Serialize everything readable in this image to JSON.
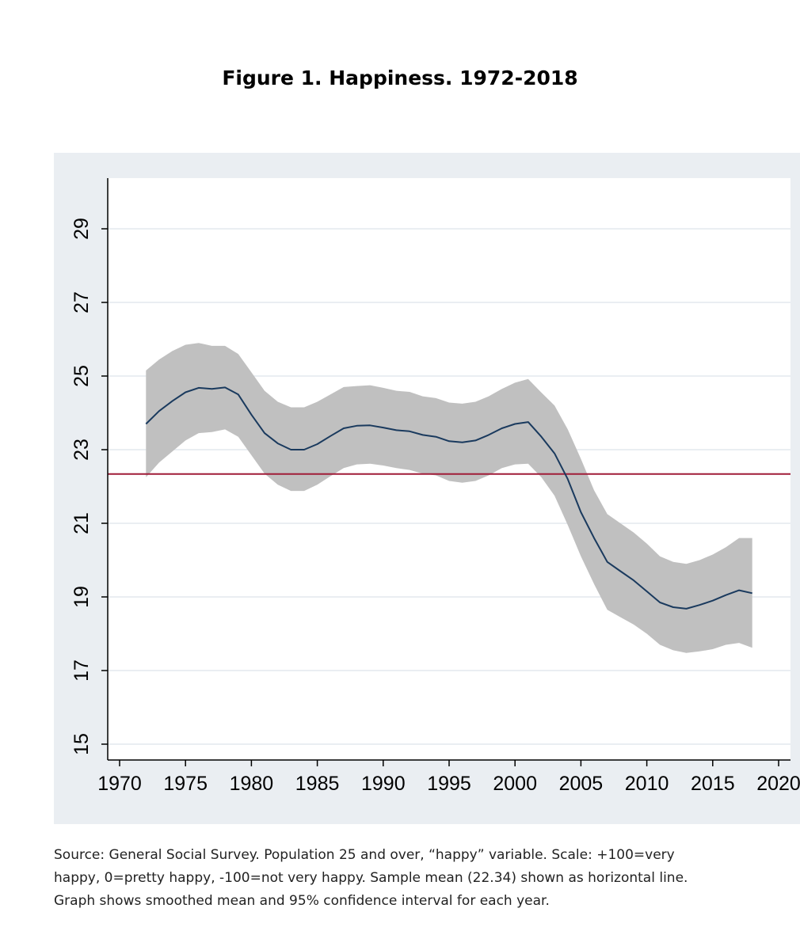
{
  "figure": {
    "title": "Figure 1.  Happiness. 1972-2018",
    "note_lines": [
      "Source: General Social Survey. Population 25 and over, “happy” variable. Scale: +100=very",
      "happy, 0=pretty happy, -100=not very happy. Sample mean (22.34) shown as horizontal line.",
      "Graph shows smoothed mean and 95% confidence interval for each year."
    ]
  },
  "colors": {
    "outer_background": "#eaeef2",
    "plot_background": "#ffffff",
    "grid": "#e3e8ee",
    "band": "#c0c0c0",
    "line": "#1a3a5e",
    "mean_line": "#a01c38",
    "axis": "#000000"
  },
  "chart_data": {
    "type": "line",
    "title": "Figure 1.  Happiness. 1972-2018",
    "xlabel": "",
    "ylabel": "",
    "xlim": [
      1970,
      2020
    ],
    "ylim": [
      15,
      29
    ],
    "xticks": [
      1970,
      1975,
      1980,
      1985,
      1990,
      1995,
      2000,
      2005,
      2010,
      2015,
      2020
    ],
    "yticks": [
      15,
      17,
      19,
      21,
      23,
      25,
      27,
      29
    ],
    "grid": true,
    "y_tick_labels_rotated": true,
    "reference_line": {
      "y": 22.34
    },
    "x": [
      1972,
      1973,
      1974,
      1975,
      1976,
      1977,
      1978,
      1979,
      1980,
      1981,
      1982,
      1983,
      1984,
      1985,
      1986,
      1987,
      1988,
      1989,
      1990,
      1991,
      1992,
      1993,
      1994,
      1995,
      1996,
      1997,
      1998,
      1999,
      2000,
      2001,
      2002,
      2003,
      2004,
      2005,
      2006,
      2007,
      2008,
      2009,
      2010,
      2011,
      2012,
      2013,
      2014,
      2015,
      2016,
      2017,
      2018
    ],
    "series": [
      {
        "values": [
          23.7,
          24.05,
          24.32,
          24.56,
          24.68,
          24.65,
          24.69,
          24.5,
          23.95,
          23.45,
          23.17,
          23.0,
          23.0,
          23.15,
          23.37,
          23.58,
          23.65,
          23.66,
          23.6,
          23.53,
          23.5,
          23.4,
          23.35,
          23.23,
          23.2,
          23.25,
          23.4,
          23.58,
          23.7,
          23.75,
          23.35,
          22.9,
          22.2,
          21.3,
          20.6,
          19.95,
          19.7,
          19.45,
          19.15,
          18.85,
          18.72,
          18.68,
          18.78,
          18.9,
          19.05,
          19.18,
          19.1
        ],
        "ci_upper": [
          25.15,
          25.45,
          25.68,
          25.85,
          25.9,
          25.82,
          25.82,
          25.6,
          25.1,
          24.6,
          24.3,
          24.15,
          24.15,
          24.3,
          24.5,
          24.7,
          24.73,
          24.75,
          24.68,
          24.6,
          24.57,
          24.45,
          24.4,
          24.28,
          24.25,
          24.3,
          24.45,
          24.65,
          24.82,
          24.92,
          24.55,
          24.2,
          23.55,
          22.75,
          21.9,
          21.25,
          21.0,
          20.75,
          20.45,
          20.1,
          19.95,
          19.9,
          20.0,
          20.15,
          20.35,
          20.6,
          20.6
        ],
        "ci_lower": [
          22.25,
          22.65,
          22.95,
          23.25,
          23.45,
          23.48,
          23.55,
          23.35,
          22.85,
          22.35,
          22.05,
          21.88,
          21.88,
          22.05,
          22.28,
          22.5,
          22.6,
          22.62,
          22.57,
          22.5,
          22.45,
          22.35,
          22.3,
          22.15,
          22.1,
          22.15,
          22.3,
          22.5,
          22.6,
          22.62,
          22.25,
          21.75,
          20.95,
          20.1,
          19.35,
          18.65,
          18.45,
          18.25,
          18.0,
          17.7,
          17.55,
          17.48,
          17.52,
          17.58,
          17.7,
          17.75,
          17.62
        ]
      }
    ]
  }
}
